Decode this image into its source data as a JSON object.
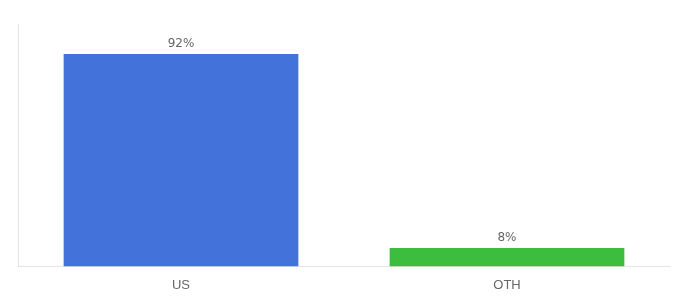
{
  "chart_data": {
    "type": "bar",
    "categories": [
      "US",
      "OTH"
    ],
    "values": [
      92,
      8
    ],
    "value_labels": [
      "92%",
      "8%"
    ],
    "colors": [
      "#4472db",
      "#3dbd3d"
    ],
    "ylim": [
      0,
      105
    ],
    "data_labels": true,
    "tick_labels": "x",
    "grid": false
  }
}
